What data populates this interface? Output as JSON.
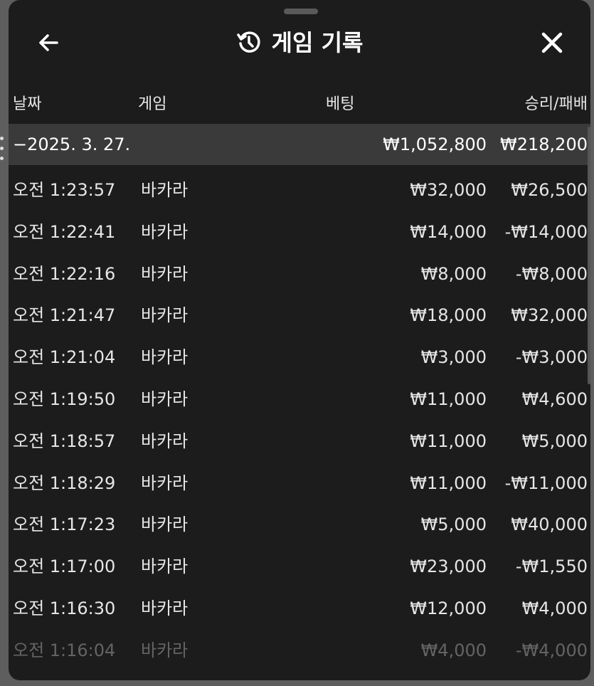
{
  "header": {
    "title": "게임 기록",
    "back_icon": "arrow-left-icon",
    "history_icon": "history-icon",
    "close_icon": "close-icon"
  },
  "columns": {
    "date": "날짜",
    "game": "게임",
    "bet": "베팅",
    "win_loss": "승리/패배"
  },
  "summary": {
    "date": "−2025. 3. 27.",
    "bet": "₩1,052,800",
    "win_loss": "₩218,200"
  },
  "rows": [
    {
      "time": "오전 1:23:57",
      "game": "바카라",
      "bet": "₩32,000",
      "win_loss": "₩26,500"
    },
    {
      "time": "오전 1:22:41",
      "game": "바카라",
      "bet": "₩14,000",
      "win_loss": "-₩14,000"
    },
    {
      "time": "오전 1:22:16",
      "game": "바카라",
      "bet": "₩8,000",
      "win_loss": "-₩8,000"
    },
    {
      "time": "오전 1:21:47",
      "game": "바카라",
      "bet": "₩18,000",
      "win_loss": "₩32,000"
    },
    {
      "time": "오전 1:21:04",
      "game": "바카라",
      "bet": "₩3,000",
      "win_loss": "-₩3,000"
    },
    {
      "time": "오전 1:19:50",
      "game": "바카라",
      "bet": "₩11,000",
      "win_loss": "₩4,600"
    },
    {
      "time": "오전 1:18:57",
      "game": "바카라",
      "bet": "₩11,000",
      "win_loss": "₩5,000"
    },
    {
      "time": "오전 1:18:29",
      "game": "바카라",
      "bet": "₩11,000",
      "win_loss": "-₩11,000"
    },
    {
      "time": "오전 1:17:23",
      "game": "바카라",
      "bet": "₩5,000",
      "win_loss": "₩40,000"
    },
    {
      "time": "오전 1:17:00",
      "game": "바카라",
      "bet": "₩23,000",
      "win_loss": "-₩1,550"
    },
    {
      "time": "오전 1:16:30",
      "game": "바카라",
      "bet": "₩12,000",
      "win_loss": "₩4,000"
    },
    {
      "time": "오전 1:16:04",
      "game": "바카라",
      "bet": "₩4,000",
      "win_loss": "-₩4,000"
    }
  ]
}
